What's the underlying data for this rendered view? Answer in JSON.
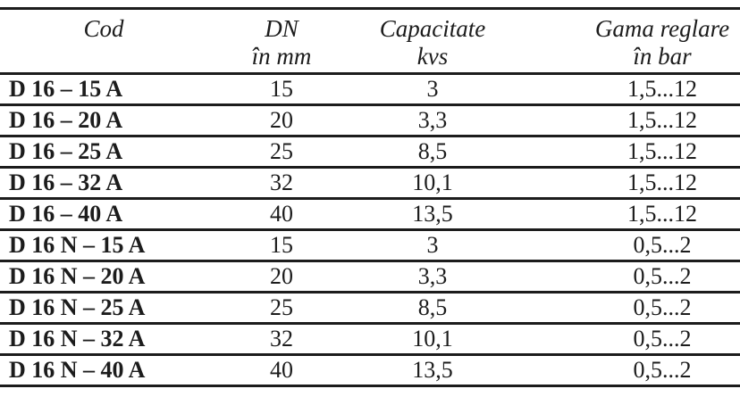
{
  "colors": {
    "background": "#ffffff",
    "text": "#1c1c1c",
    "rule": "#1c1c1c"
  },
  "table": {
    "columns": [
      {
        "line1": "Cod",
        "line2": ""
      },
      {
        "line1": "DN",
        "line2": "în mm"
      },
      {
        "line1": "Capacitate",
        "line2": "kvs"
      },
      {
        "line1": "Gama reglare",
        "line2": "în bar"
      }
    ],
    "rows": [
      {
        "cod": "D 16 – 15 A",
        "dn": "15",
        "capacitate": "3",
        "gama": "1,5...12"
      },
      {
        "cod": "D 16 – 20 A",
        "dn": "20",
        "capacitate": "3,3",
        "gama": "1,5...12"
      },
      {
        "cod": "D 16 – 25 A",
        "dn": "25",
        "capacitate": "8,5",
        "gama": "1,5...12"
      },
      {
        "cod": "D 16 – 32 A",
        "dn": "32",
        "capacitate": "10,1",
        "gama": "1,5...12"
      },
      {
        "cod": "D 16 – 40 A",
        "dn": "40",
        "capacitate": "13,5",
        "gama": "1,5...12"
      },
      {
        "cod": "D 16 N – 15 A",
        "dn": "15",
        "capacitate": "3",
        "gama": "0,5...2"
      },
      {
        "cod": "D 16 N – 20 A",
        "dn": "20",
        "capacitate": "3,3",
        "gama": "0,5...2"
      },
      {
        "cod": "D 16 N – 25 A",
        "dn": "25",
        "capacitate": "8,5",
        "gama": "0,5...2"
      },
      {
        "cod": "D 16 N – 32 A",
        "dn": "32",
        "capacitate": "10,1",
        "gama": "0,5...2"
      },
      {
        "cod": "D 16 N – 40 A",
        "dn": "40",
        "capacitate": "13,5",
        "gama": "0,5...2"
      }
    ]
  }
}
